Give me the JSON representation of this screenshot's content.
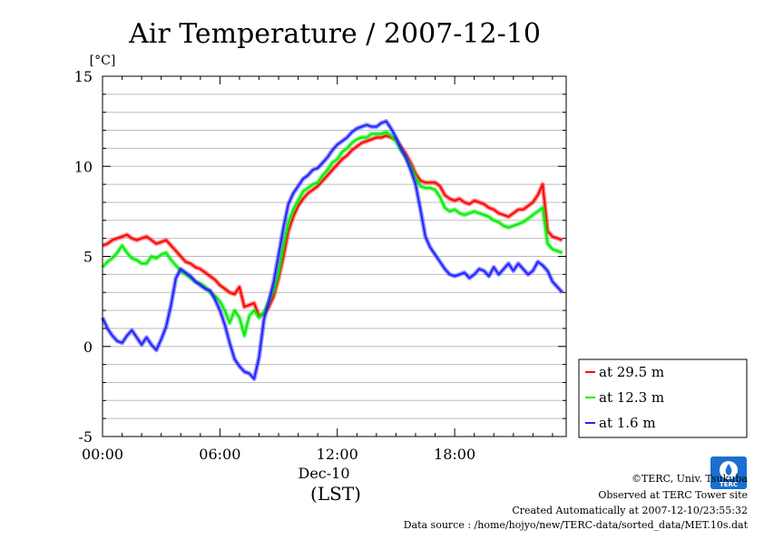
{
  "chart_data": {
    "type": "line",
    "title": "Air Temperature / 2007-12-10",
    "ylabel": "[°C]",
    "xlabel": "(LST)",
    "date_label": "Dec-10",
    "xlim": [
      0,
      23.7
    ],
    "ylim": [
      -5,
      15
    ],
    "y_ticks": [
      -5,
      0,
      5,
      10,
      15
    ],
    "y_tick_labels": [
      "-5",
      "0",
      "5",
      "10",
      "15"
    ],
    "x_ticks": [
      0,
      6,
      12,
      18
    ],
    "x_tick_labels": [
      "00:00",
      "06:00",
      "12:00",
      "18:00"
    ],
    "grid": "horizontal",
    "legend_position": "right",
    "series": [
      {
        "name": "at 29.5 m",
        "color": "#ff0000",
        "x": [
          0,
          0.25,
          0.5,
          0.75,
          1,
          1.25,
          1.5,
          1.75,
          2,
          2.25,
          2.5,
          2.75,
          3,
          3.25,
          3.5,
          3.75,
          4,
          4.25,
          4.5,
          4.75,
          5,
          5.25,
          5.5,
          5.75,
          6,
          6.25,
          6.5,
          6.75,
          7,
          7.25,
          7.5,
          7.75,
          8,
          8.25,
          8.5,
          8.75,
          9,
          9.25,
          9.5,
          9.75,
          10,
          10.25,
          10.5,
          10.75,
          11,
          11.25,
          11.5,
          11.75,
          12,
          12.25,
          12.5,
          12.75,
          13,
          13.25,
          13.5,
          13.75,
          14,
          14.25,
          14.5,
          14.75,
          15,
          15.25,
          15.5,
          15.75,
          16,
          16.25,
          16.5,
          16.75,
          17,
          17.25,
          17.5,
          17.75,
          18,
          18.25,
          18.5,
          18.75,
          19,
          19.25,
          19.5,
          19.75,
          20,
          20.25,
          20.5,
          20.75,
          21,
          21.25,
          21.5,
          21.75,
          22,
          22.25,
          22.5,
          22.75,
          23,
          23.25,
          23.5
        ],
        "values": [
          5.6,
          5.7,
          5.9,
          6.0,
          6.1,
          6.2,
          6.0,
          5.9,
          6.0,
          6.1,
          5.9,
          5.7,
          5.8,
          5.9,
          5.6,
          5.3,
          5.0,
          4.7,
          4.6,
          4.4,
          4.3,
          4.1,
          3.9,
          3.7,
          3.4,
          3.2,
          3.0,
          2.9,
          3.3,
          2.2,
          2.3,
          2.4,
          1.7,
          1.8,
          2.2,
          2.8,
          3.8,
          5.0,
          6.4,
          7.2,
          7.8,
          8.2,
          8.5,
          8.7,
          8.9,
          9.2,
          9.5,
          9.8,
          10.1,
          10.4,
          10.6,
          10.9,
          11.1,
          11.3,
          11.4,
          11.5,
          11.6,
          11.6,
          11.7,
          11.6,
          11.5,
          11.1,
          10.7,
          10.2,
          9.6,
          9.2,
          9.1,
          9.1,
          9.1,
          8.9,
          8.4,
          8.2,
          8.1,
          8.2,
          8.0,
          7.9,
          8.1,
          8.0,
          7.9,
          7.7,
          7.6,
          7.4,
          7.3,
          7.2,
          7.4,
          7.6,
          7.6,
          7.8,
          8.0,
          8.4,
          9.0,
          6.4,
          6.1,
          6.0,
          5.9
        ]
      },
      {
        "name": "at 12.3 m",
        "color": "#00ee00",
        "x": [
          0,
          0.25,
          0.5,
          0.75,
          1,
          1.25,
          1.5,
          1.75,
          2,
          2.25,
          2.5,
          2.75,
          3,
          3.25,
          3.5,
          3.75,
          4,
          4.25,
          4.5,
          4.75,
          5,
          5.25,
          5.5,
          5.75,
          6,
          6.25,
          6.5,
          6.75,
          7,
          7.25,
          7.5,
          7.75,
          8,
          8.25,
          8.5,
          8.75,
          9,
          9.25,
          9.5,
          9.75,
          10,
          10.25,
          10.5,
          10.75,
          11,
          11.25,
          11.5,
          11.75,
          12,
          12.25,
          12.5,
          12.75,
          13,
          13.25,
          13.5,
          13.75,
          14,
          14.25,
          14.5,
          14.75,
          15,
          15.25,
          15.5,
          15.75,
          16,
          16.25,
          16.5,
          16.75,
          17,
          17.25,
          17.5,
          17.75,
          18,
          18.25,
          18.5,
          18.75,
          19,
          19.25,
          19.5,
          19.75,
          20,
          20.25,
          20.5,
          20.75,
          21,
          21.25,
          21.5,
          21.75,
          22,
          22.25,
          22.5,
          22.75,
          23,
          23.25,
          23.5
        ],
        "values": [
          4.4,
          4.7,
          4.9,
          5.2,
          5.6,
          5.2,
          4.9,
          4.8,
          4.6,
          4.6,
          5.0,
          4.9,
          5.1,
          5.2,
          4.8,
          4.5,
          4.2,
          4.0,
          3.8,
          3.6,
          3.5,
          3.3,
          3.0,
          2.8,
          2.5,
          2.0,
          1.3,
          2.0,
          1.6,
          0.6,
          1.7,
          2.0,
          1.6,
          1.9,
          2.5,
          3.1,
          4.1,
          5.6,
          6.9,
          7.6,
          8.1,
          8.6,
          8.8,
          9.0,
          9.1,
          9.5,
          9.8,
          10.2,
          10.4,
          10.8,
          11.0,
          11.3,
          11.5,
          11.6,
          11.6,
          11.8,
          11.8,
          11.8,
          11.9,
          11.7,
          11.4,
          10.9,
          10.5,
          10.0,
          9.4,
          8.9,
          8.8,
          8.8,
          8.7,
          8.3,
          7.7,
          7.5,
          7.6,
          7.4,
          7.3,
          7.4,
          7.5,
          7.4,
          7.3,
          7.2,
          7.0,
          6.9,
          6.7,
          6.6,
          6.7,
          6.8,
          6.9,
          7.1,
          7.3,
          7.5,
          7.7,
          5.7,
          5.4,
          5.3,
          5.2
        ]
      },
      {
        "name": "at 1.6 m",
        "color": "#2222ff",
        "x": [
          0,
          0.25,
          0.5,
          0.75,
          1,
          1.25,
          1.5,
          1.75,
          2,
          2.25,
          2.5,
          2.75,
          3,
          3.25,
          3.5,
          3.75,
          4,
          4.25,
          4.5,
          4.75,
          5,
          5.25,
          5.5,
          5.75,
          6,
          6.25,
          6.5,
          6.75,
          7,
          7.25,
          7.5,
          7.75,
          8,
          8.25,
          8.5,
          8.75,
          9,
          9.25,
          9.5,
          9.75,
          10,
          10.25,
          10.5,
          10.75,
          11,
          11.25,
          11.5,
          11.75,
          12,
          12.25,
          12.5,
          12.75,
          13,
          13.25,
          13.5,
          13.75,
          14,
          14.25,
          14.5,
          14.75,
          15,
          15.25,
          15.5,
          15.75,
          16,
          16.25,
          16.5,
          16.75,
          17,
          17.25,
          17.5,
          17.75,
          18,
          18.25,
          18.5,
          18.75,
          19,
          19.25,
          19.5,
          19.75,
          20,
          20.25,
          20.5,
          20.75,
          21,
          21.25,
          21.5,
          21.75,
          22,
          22.25,
          22.5,
          22.75,
          23,
          23.25,
          23.5
        ],
        "values": [
          1.6,
          1.0,
          0.6,
          0.3,
          0.2,
          0.6,
          0.9,
          0.5,
          0.1,
          0.5,
          0.1,
          -0.2,
          0.4,
          1.1,
          2.3,
          3.8,
          4.3,
          4.1,
          3.9,
          3.6,
          3.4,
          3.2,
          3.1,
          2.6,
          2.0,
          1.2,
          0.2,
          -0.7,
          -1.1,
          -1.4,
          -1.5,
          -1.8,
          -0.6,
          1.5,
          2.5,
          3.6,
          5.1,
          6.6,
          7.9,
          8.5,
          8.9,
          9.3,
          9.5,
          9.8,
          9.9,
          10.2,
          10.5,
          10.9,
          11.2,
          11.4,
          11.6,
          11.9,
          12.1,
          12.2,
          12.3,
          12.2,
          12.2,
          12.4,
          12.5,
          12.1,
          11.6,
          11.0,
          10.5,
          9.8,
          9.0,
          7.6,
          6.1,
          5.5,
          5.1,
          4.7,
          4.3,
          4.0,
          3.9,
          4.0,
          4.1,
          3.8,
          4.0,
          4.3,
          4.2,
          3.9,
          4.4,
          4.0,
          4.3,
          4.6,
          4.2,
          4.6,
          4.3,
          4.0,
          4.2,
          4.7,
          4.5,
          4.2,
          3.6,
          3.3,
          3.0
        ]
      }
    ]
  },
  "footer": {
    "copyright": "©TERC, Univ. Tsukuba",
    "observed": "Observed at TERC Tower site",
    "created": "Created Automatically at 2007-12-10/23:55:32",
    "source": "Data source : /home/hojyo/new/TERC-data/sorted_data/MET.10s.dat"
  },
  "logo": {
    "text": "TERC",
    "color": "#1a6fd0"
  }
}
